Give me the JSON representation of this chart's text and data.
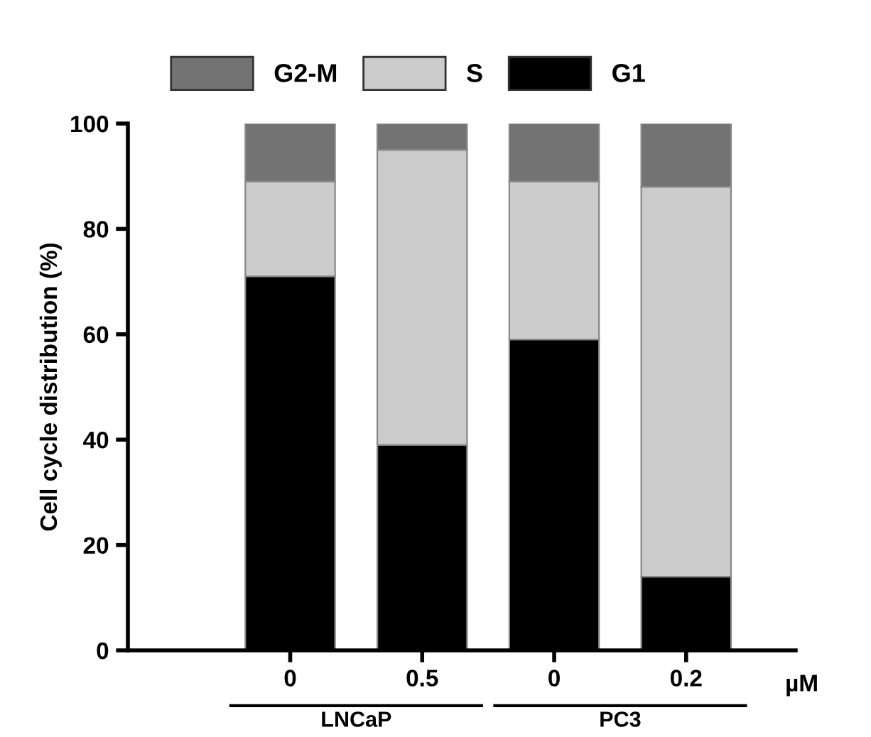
{
  "chart_data": {
    "type": "bar",
    "stacked": true,
    "ylabel": "Cell cycle distribution (%)",
    "categories": [
      "0",
      "0.5",
      "0",
      "0.2"
    ],
    "series": [
      {
        "name": "G1",
        "color": "#000000",
        "values": [
          71,
          39,
          59,
          14
        ]
      },
      {
        "name": "S",
        "color": "#cccccc",
        "values": [
          18,
          56,
          30,
          74
        ]
      },
      {
        "name": "G2-M",
        "color": "#737373",
        "values": [
          11,
          5,
          11,
          12
        ]
      }
    ],
    "ylim": [
      0,
      100
    ],
    "yticks": [
      0,
      20,
      40,
      60,
      80,
      100
    ],
    "grid": false,
    "legend": "top",
    "annotations": [
      "LNCaP",
      "PC3",
      "µM"
    ]
  }
}
